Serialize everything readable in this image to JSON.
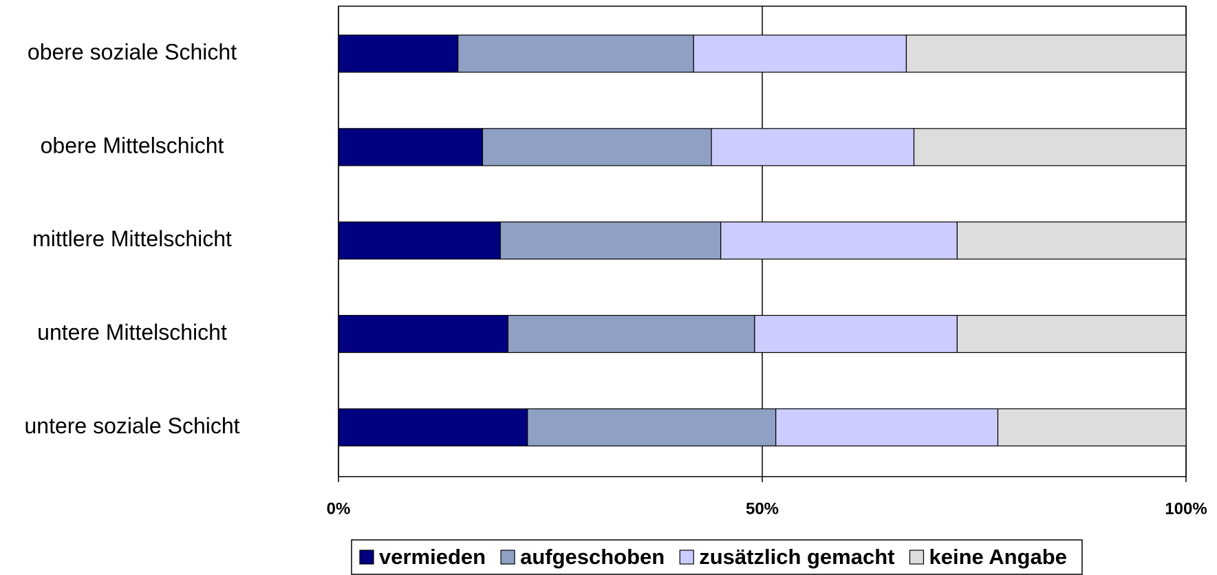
{
  "chart_data": {
    "type": "stacked-bar-horizontal",
    "categories": [
      "obere soziale Schicht",
      "obere Mittelschicht",
      "mittlere Mittelschicht",
      "untere Mittelschicht",
      "untere soziale Schicht"
    ],
    "series": [
      {
        "name": "vermieden",
        "color": "#000080",
        "values": [
          14.1,
          17.0,
          19.1,
          20.0,
          22.3
        ]
      },
      {
        "name": "aufgeschoben",
        "color": "#8fa0c4",
        "values": [
          27.8,
          27.0,
          26.0,
          29.1,
          29.3
        ]
      },
      {
        "name": "zusätzlich gemacht",
        "color": "#ccccff",
        "values": [
          25.1,
          23.9,
          27.9,
          23.9,
          26.2
        ]
      },
      {
        "name": "keine Angabe",
        "color": "#dddddd",
        "values": [
          33.0,
          32.1,
          27.0,
          27.0,
          22.2
        ]
      }
    ],
    "xlim": [
      0,
      100
    ],
    "xticks": [
      {
        "value": 0,
        "label": "0%"
      },
      {
        "value": 50,
        "label": "50%"
      },
      {
        "value": 100,
        "label": "100%"
      }
    ],
    "grid": true,
    "legend": "bottom"
  }
}
